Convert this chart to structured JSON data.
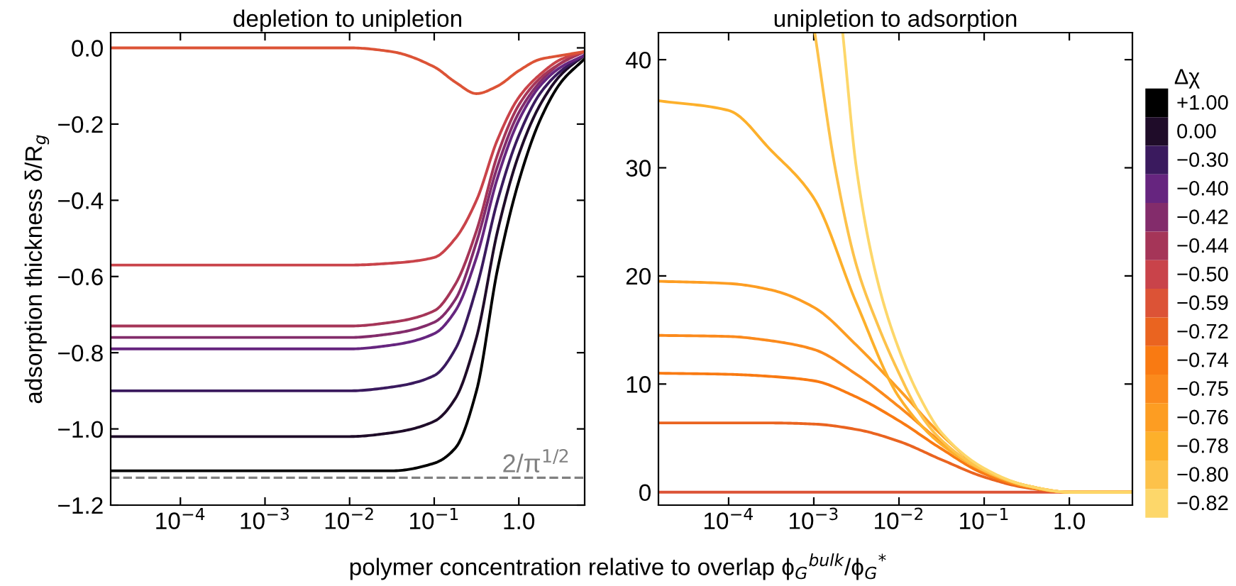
{
  "chart_data": [
    {
      "type": "line",
      "title": "depletion to unipletion",
      "xlabel": "polymer concentration relative to overlap ϕ$_{G}$$^{bulk}$/ϕ$_{G}$$^{*}$",
      "ylabel": "adsorption thickness δ/R$_{g}$",
      "log": "x",
      "xlim": [
        1.5e-05,
        6
      ],
      "xticks": [
        {
          "value": 0.0001,
          "label": "10$^{−4}$"
        },
        {
          "value": 0.001,
          "label": "10$^{−3}$"
        },
        {
          "value": 0.01,
          "label": "10$^{−2}$"
        },
        {
          "value": 0.1,
          "label": "10$^{−1}$"
        },
        {
          "value": 1,
          "label": "1.0"
        }
      ],
      "ylim": [
        -1.2,
        0.04
      ],
      "yticks": [
        {
          "value": 0,
          "label": "0.0"
        },
        {
          "value": -0.2,
          "label": "−0.2"
        },
        {
          "value": -0.4,
          "label": "−0.4"
        },
        {
          "value": -0.6,
          "label": "−0.6"
        },
        {
          "value": -0.8,
          "label": "−0.8"
        },
        {
          "value": -1.0,
          "label": "−1.0"
        },
        {
          "value": -1.2,
          "label": "−1.2"
        }
      ],
      "grid": false,
      "legend": "right",
      "marker": "none",
      "line_style": "solid",
      "x": [
        1.5e-05,
        0.01,
        0.0316,
        0.1,
        0.178,
        0.316,
        0.562,
        1,
        1.78,
        3.16,
        5.9
      ],
      "ref_lines": [
        {
          "axis": "y",
          "value": -1.128,
          "label": "2/π$^{1/2}$",
          "color": "#808080",
          "line_style": "dashed"
        }
      ],
      "series": [
        {
          "name": "+1.00",
          "color": "#000000",
          "values": [
            -1.11,
            -1.11,
            -1.11,
            -1.09,
            -1.05,
            -0.9,
            -0.58,
            -0.35,
            -0.19,
            -0.09,
            -0.03
          ]
        },
        {
          "name": "0.00",
          "color": "#1f0c29",
          "values": [
            -1.02,
            -1.02,
            -1.01,
            -0.98,
            -0.92,
            -0.76,
            -0.48,
            -0.28,
            -0.15,
            -0.07,
            -0.02
          ]
        },
        {
          "name": "−0.30",
          "color": "#3a1a5e",
          "values": [
            -0.9,
            -0.9,
            -0.89,
            -0.86,
            -0.79,
            -0.63,
            -0.4,
            -0.23,
            -0.12,
            -0.06,
            -0.02
          ]
        },
        {
          "name": "−0.40",
          "color": "#66257f",
          "values": [
            -0.79,
            -0.79,
            -0.78,
            -0.75,
            -0.69,
            -0.55,
            -0.34,
            -0.19,
            -0.1,
            -0.05,
            -0.02
          ]
        },
        {
          "name": "−0.42",
          "color": "#832c6b",
          "values": [
            -0.76,
            -0.76,
            -0.75,
            -0.72,
            -0.66,
            -0.51,
            -0.31,
            -0.17,
            -0.09,
            -0.04,
            -0.01
          ]
        },
        {
          "name": "−0.44",
          "color": "#a53558",
          "values": [
            -0.73,
            -0.73,
            -0.72,
            -0.69,
            -0.62,
            -0.48,
            -0.28,
            -0.15,
            -0.08,
            -0.04,
            -0.01
          ]
        },
        {
          "name": "−0.50",
          "color": "#c9434a",
          "values": [
            -0.57,
            -0.57,
            -0.565,
            -0.55,
            -0.5,
            -0.4,
            -0.24,
            -0.13,
            -0.07,
            -0.03,
            -0.01
          ]
        },
        {
          "name": "−0.59",
          "color": "#dc5336",
          "values": [
            0,
            0,
            -0.01,
            -0.05,
            -0.09,
            -0.12,
            -0.1,
            -0.06,
            -0.03,
            -0.02,
            -0.01
          ]
        }
      ]
    },
    {
      "type": "line",
      "title": "unipletion to adsorption",
      "legend_title": "Δχ",
      "log": "x",
      "xlim": [
        1.5e-05,
        5.5
      ],
      "xticks": [
        {
          "value": 0.0001,
          "label": "10$^{−4}$"
        },
        {
          "value": 0.001,
          "label": "10$^{−3}$"
        },
        {
          "value": 0.01,
          "label": "10$^{−2}$"
        },
        {
          "value": 0.1,
          "label": "10$^{−1}$"
        },
        {
          "value": 1,
          "label": "1.0"
        }
      ],
      "ylim": [
        -1.2,
        42.5
      ],
      "yticks": [
        0,
        10,
        20,
        30,
        40
      ],
      "grid": false,
      "legend": "right",
      "marker": "none",
      "line_style": "solid",
      "x": [
        1.5e-05,
        0.0001,
        0.000316,
        0.001,
        0.00316,
        0.01,
        0.0316,
        0.1,
        0.316,
        1,
        3.16,
        5.5
      ],
      "series": [
        {
          "name": "−0.59",
          "color": "#dc5336",
          "values": [
            0,
            0,
            0,
            0,
            0,
            0,
            0,
            0,
            0,
            0,
            0,
            0
          ]
        },
        {
          "name": "−0.72",
          "color": "#ea6420",
          "values": [
            6.4,
            6.4,
            6.4,
            6.3,
            5.8,
            4.7,
            3.0,
            1.4,
            0.4,
            0,
            0,
            0
          ]
        },
        {
          "name": "−0.74",
          "color": "#f97a12",
          "values": [
            11,
            10.9,
            10.7,
            10.3,
            8.8,
            6.6,
            4.0,
            1.7,
            0.5,
            0,
            0,
            0
          ]
        },
        {
          "name": "−0.75",
          "color": "#fb8a1c",
          "values": [
            14.5,
            14.4,
            14.0,
            13.2,
            10.9,
            7.9,
            4.6,
            1.9,
            0.5,
            0,
            0,
            0
          ]
        },
        {
          "name": "−0.76",
          "color": "#fd9d22",
          "values": [
            19.5,
            19.3,
            18.7,
            17.1,
            13.6,
            9.5,
            5.3,
            2.1,
            0.6,
            0,
            0,
            0
          ]
        },
        {
          "name": "−0.78",
          "color": "#fdb02b",
          "values": [
            36.2,
            35.3,
            31.6,
            27.2,
            17.5,
            8.8,
            4.4,
            2.0,
            0.6,
            0,
            0,
            0
          ]
        },
        {
          "name": "−0.80",
          "color": "#fdc24a",
          "x": [
            0.00103,
            0.00178,
            0.00316,
            0.00562,
            0.01,
            0.0178,
            0.0316,
            0.1,
            0.316,
            1,
            3.16,
            5.5
          ],
          "values": [
            42.4,
            30,
            21,
            15.5,
            11,
            7.2,
            4.8,
            2.0,
            0.6,
            0,
            0,
            0
          ]
        },
        {
          "name": "−0.82",
          "color": "#fdd76a",
          "x": [
            0.00219,
            0.00316,
            0.00562,
            0.01,
            0.0178,
            0.0316,
            0.1,
            0.316,
            1,
            3.16,
            5.5
          ],
          "values": [
            42.4,
            30,
            19.5,
            13.2,
            8.7,
            5.5,
            2.2,
            0.6,
            0,
            0,
            0
          ]
        }
      ]
    }
  ]
}
